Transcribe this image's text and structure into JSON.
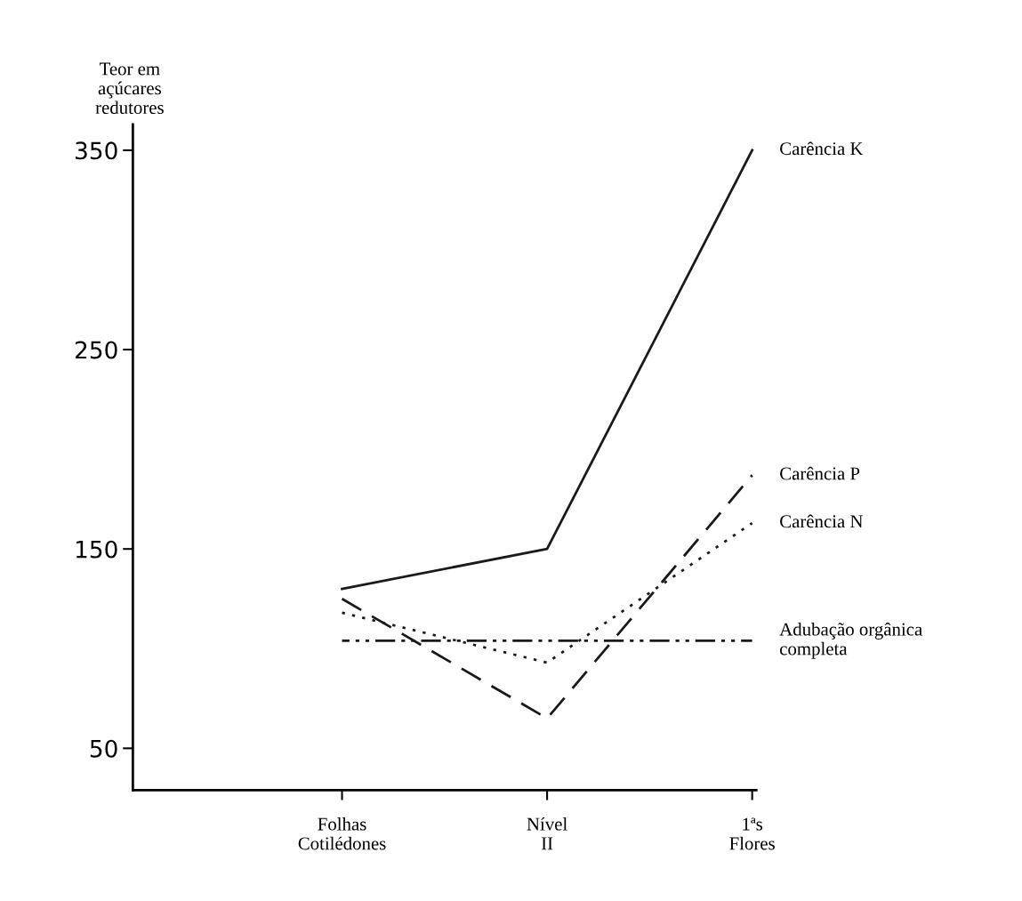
{
  "chart_data": {
    "type": "line",
    "ylabel": "Teor em\naçúcares\nredutores",
    "categories": [
      "Folhas\nCotilédones",
      "Nível\nII",
      "1ªs\nFlores"
    ],
    "ylim": [
      29,
      363
    ],
    "yticks": [
      50,
      150,
      250,
      350
    ],
    "grid": false,
    "legend": false,
    "series": [
      {
        "name": "Carência K",
        "color": "#1a1a1a",
        "values": [
          130,
          150,
          350
        ],
        "line_style": "solid"
      },
      {
        "name": "Carência P",
        "color": "#1a1a1a",
        "values": [
          125,
          65,
          187
        ],
        "line_style": "dashed"
      },
      {
        "name": "Carência N",
        "color": "#1a1a1a",
        "values": [
          118,
          93,
          163
        ],
        "line_style": "dotted"
      },
      {
        "name": "Adubação orgânica\ncompleta",
        "color": "#1a1a1a",
        "values": [
          104,
          104,
          104
        ],
        "line_style": "dashdotdot"
      }
    ]
  }
}
